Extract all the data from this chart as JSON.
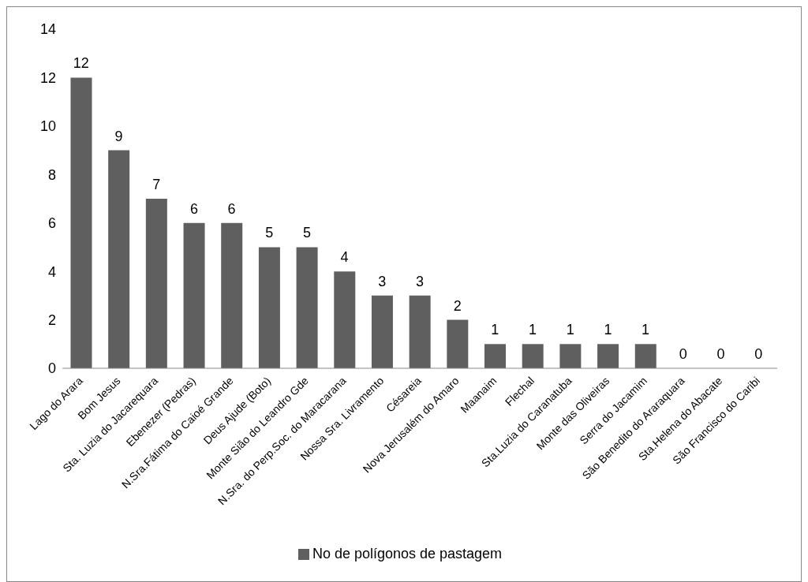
{
  "chart_data": {
    "type": "bar",
    "categories": [
      "Lago do Arara",
      "Bom Jesus",
      "Sta. Luzia do Jacarequara",
      "Ebenezer (Pedras)",
      "N.Sra.Fátima do Caioé Grande",
      "Deus Ajude (Boto)",
      "Monte Sião do Leandro Gde",
      "N.Sra. do Perp.Soc. do Maracarana",
      "Nossa Sra. Livramento",
      "Césareia",
      "Nova Jerusalém do Amaro",
      "Maanaim",
      "Flechal",
      "Sta.Luzia do Caranatuba",
      "Monte das Oliveiras",
      "Serra do Jacamim",
      "São Benedito do Araraquara",
      "Sta.Helena do Abacate",
      "São Francisco do Caribi"
    ],
    "series": [
      {
        "name": "No de polígonos de pastagem",
        "color": "#5f5f5f",
        "values": [
          12,
          9,
          7,
          6,
          6,
          5,
          5,
          4,
          3,
          3,
          2,
          1,
          1,
          1,
          1,
          1,
          0,
          0,
          0
        ]
      }
    ],
    "ylim": [
      0,
      14
    ],
    "yticks": [
      0,
      2,
      4,
      6,
      8,
      10,
      12,
      14
    ],
    "data_labels": true,
    "grid": false,
    "legend": "bottom"
  }
}
